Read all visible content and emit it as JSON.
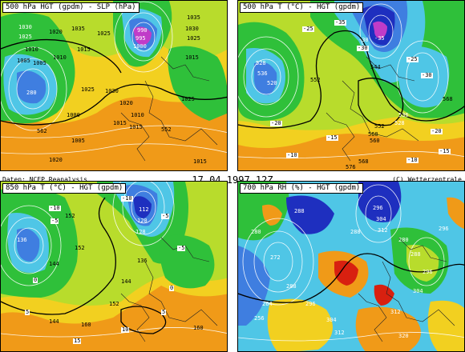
{
  "header": {
    "source": "Daten: NCEP Reanalysis",
    "date": "17.04.1997 12Z",
    "credit": "(C) Wetterzentrale"
  },
  "panels": [
    {
      "title": "500 hPa HGT (gpdm) - SLP (hPa)",
      "labels": [
        "1030",
        "1025",
        "1020",
        "1035",
        "1000",
        "995",
        "990",
        "1010",
        "1005",
        "1015",
        "1025",
        "1030",
        "1015",
        "1010",
        "1020",
        "1025",
        "1015",
        "1035",
        "1030",
        "1025",
        "1015",
        "562",
        "552",
        "1005",
        "1010",
        "280",
        "1000",
        "1025",
        "1020",
        "1005",
        "1015"
      ]
    },
    {
      "title": "500 hPa T (°C) - HGT (gpdm)",
      "labels": [
        "-30",
        "-35",
        "528",
        "536",
        "552",
        "560",
        "568",
        "-25",
        "-20",
        "-15",
        "-10",
        "544",
        "536",
        "528",
        "-30",
        "-25",
        "-20",
        "-15",
        "-10",
        "568",
        "576",
        "552",
        "560",
        "-35",
        "-30",
        "520"
      ]
    },
    {
      "title": "850 hPa T (°C) - HGT (gpdm)",
      "labels": [
        "-10",
        "-5",
        "0",
        "5",
        "136",
        "144",
        "152",
        "128",
        "120",
        "112",
        "136",
        "144",
        "152",
        "160",
        "-5",
        "0",
        "5",
        "10",
        "15",
        "-10",
        "-5",
        "152",
        "160",
        "144"
      ]
    },
    {
      "title": "700 hPa RH (%) - HGT (gpdm)",
      "labels": [
        "288",
        "296",
        "304",
        "312",
        "280",
        "272",
        "288",
        "296",
        "304",
        "312",
        "264",
        "256",
        "280",
        "288",
        "296",
        "304",
        "312",
        "320",
        "288",
        "296"
      ]
    }
  ],
  "colors": {
    "blue_dark": "#1e2fbf",
    "blue_mid": "#3f7ee0",
    "cyan": "#4fc6e6",
    "green": "#2fc03a",
    "yellow_green": "#b8dc2c",
    "yellow": "#f2d020",
    "orange": "#f09a18",
    "purple": "#c03cc8",
    "red": "#d82010"
  }
}
